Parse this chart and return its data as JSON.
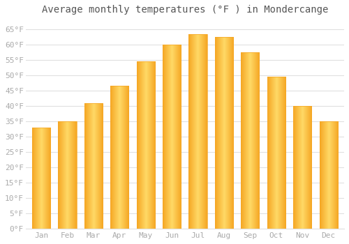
{
  "title": "Average monthly temperatures (°F ) in Mondercange",
  "months": [
    "Jan",
    "Feb",
    "Mar",
    "Apr",
    "May",
    "Jun",
    "Jul",
    "Aug",
    "Sep",
    "Oct",
    "Nov",
    "Dec"
  ],
  "values": [
    33,
    35,
    41,
    46.5,
    54.5,
    60,
    63.5,
    62.5,
    57.5,
    49.5,
    40,
    35
  ],
  "bar_color_center": "#FFD966",
  "bar_color_edge": "#F5A623",
  "background_color": "#ffffff",
  "grid_color": "#e0e0e0",
  "ytick_labels": [
    "0°F",
    "5°F",
    "10°F",
    "15°F",
    "20°F",
    "25°F",
    "30°F",
    "35°F",
    "40°F",
    "45°F",
    "50°F",
    "55°F",
    "60°F",
    "65°F"
  ],
  "ytick_values": [
    0,
    5,
    10,
    15,
    20,
    25,
    30,
    35,
    40,
    45,
    50,
    55,
    60,
    65
  ],
  "ylim": [
    0,
    68
  ],
  "title_fontsize": 10,
  "tick_fontsize": 8,
  "font_family": "monospace",
  "tick_color": "#aaaaaa",
  "title_color": "#555555"
}
